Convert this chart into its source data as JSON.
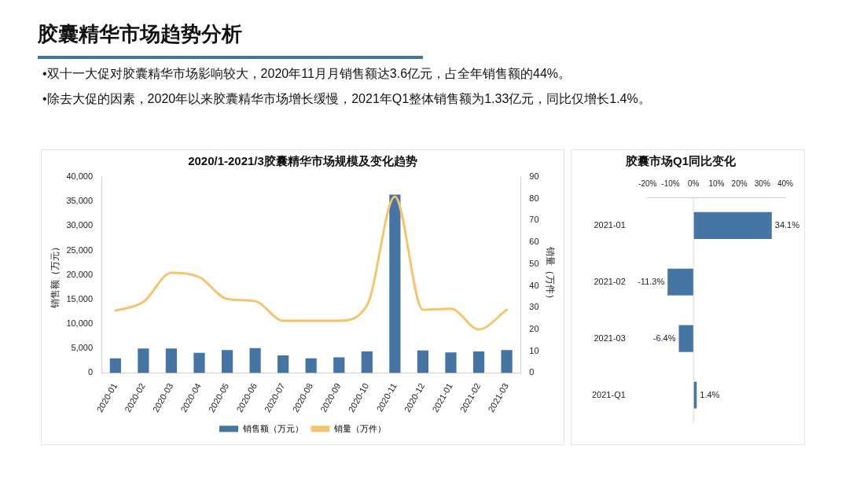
{
  "chart_data": [
    {
      "type": "bar",
      "title": "2020/1-2021/3胶囊精华市场规模及变化趋势",
      "annotations": [
        "胶囊精华市场趋势分析",
        "•双十一大促对胶囊精华市场影响较大，2020年11月月销售额达3.6亿元，占全年销售额的44%。",
        "•除去大促的因素，2020年以来胶囊精华市场增长缓慢，2021年Q1整体销售额为1.33亿元，同比仅增长1.4%。"
      ],
      "categories": [
        "2020-01",
        "2020-02",
        "2020-03",
        "2020-04",
        "2020-05",
        "2020-06",
        "2020-07",
        "2020-08",
        "2020-09",
        "2020-10",
        "2020-11",
        "2020-12",
        "2021-01",
        "2021-02",
        "2021-03"
      ],
      "series": [
        {
          "name": "销售额（万元）",
          "type": "bar",
          "color": "#4674a3",
          "values": [
            3000,
            5000,
            5000,
            4100,
            4700,
            5100,
            3600,
            3000,
            3200,
            4400,
            36400,
            4600,
            4200,
            4400,
            4700
          ]
        },
        {
          "name": "销量（万件）",
          "type": "line",
          "axis": "y2",
          "color": "#f5c46e",
          "values": [
            28.6,
            32.6,
            46,
            44,
            34,
            33,
            24,
            24,
            24,
            31,
            81,
            29,
            29.5,
            20,
            29
          ]
        }
      ],
      "ylabel": "销售额（万元）",
      "y2label": "销量（万件）",
      "ylim": [
        0,
        40000
      ],
      "yticks": [
        {
          "value": 0,
          "label": "0"
        },
        {
          "value": 5000,
          "label": "5,000"
        },
        {
          "value": 10000,
          "label": "10,000"
        },
        {
          "value": 15000,
          "label": "15,000"
        },
        {
          "value": 20000,
          "label": "20,000"
        },
        {
          "value": 25000,
          "label": "25,000"
        },
        {
          "value": 30000,
          "label": "30,000"
        },
        {
          "value": 35000,
          "label": "35,000"
        },
        {
          "value": 40000,
          "label": "40,000"
        }
      ],
      "y2lim": [
        0,
        90
      ],
      "y2ticks": [
        0,
        10,
        20,
        30,
        40,
        50,
        60,
        70,
        80,
        90
      ],
      "legend": "bottom",
      "marker": "none"
    },
    {
      "type": "bar",
      "title": "胶囊市场Q1同比变化",
      "orientation": "horizontal",
      "categories": [
        "2021-01",
        "2021-02",
        "2021-03",
        "2021-Q1"
      ],
      "values": [
        34.1,
        -11.3,
        -6.4,
        1.4
      ],
      "color": "#4674a3",
      "value_labels": [
        "34.1%",
        "-11.3%",
        "-6.4%",
        "1.4%"
      ],
      "xlim": [
        -20,
        40
      ],
      "xticks": [
        {
          "value": -20,
          "label": "-20%"
        },
        {
          "value": -10,
          "label": "-10%"
        },
        {
          "value": 0,
          "label": "0%"
        },
        {
          "value": 10,
          "label": "10%"
        },
        {
          "value": 20,
          "label": "20%"
        },
        {
          "value": 30,
          "label": "30%"
        },
        {
          "value": 40,
          "label": "40%"
        }
      ],
      "ref_lines": [
        {
          "axis": "x",
          "value": 0,
          "color": "#d9d9d9"
        }
      ]
    }
  ]
}
